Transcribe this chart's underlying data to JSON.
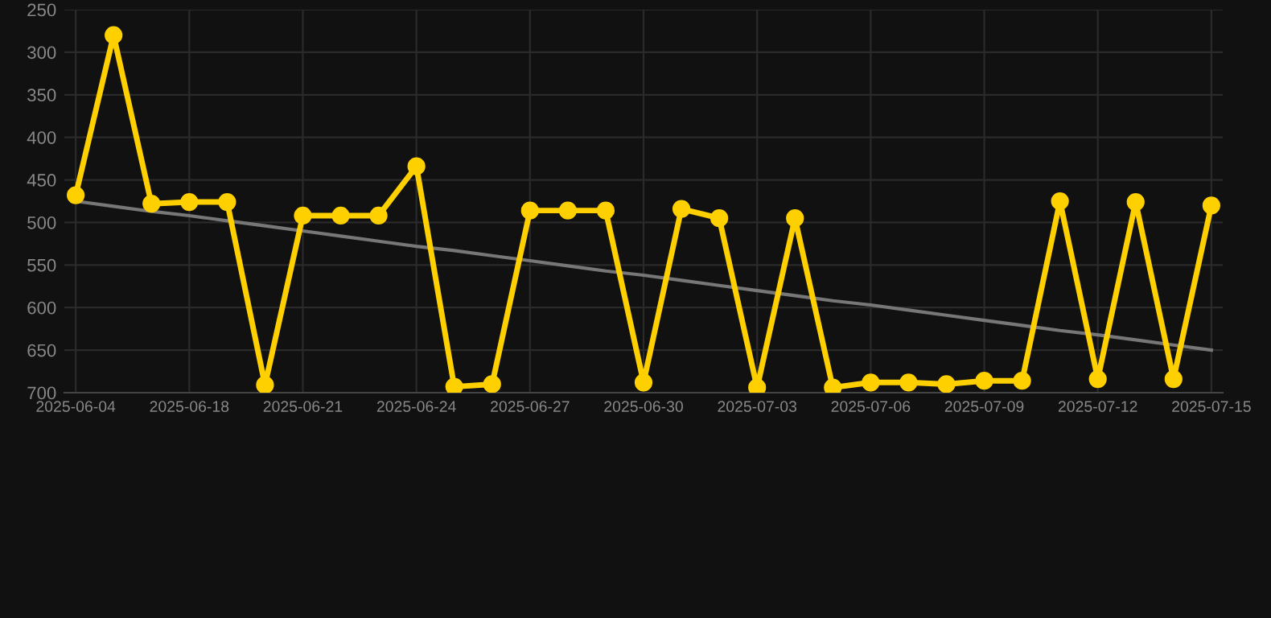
{
  "chart_data": {
    "type": "line",
    "categories": [
      "2025-06-04",
      null,
      null,
      "2025-06-18",
      null,
      null,
      "2025-06-21",
      null,
      null,
      "2025-06-24",
      null,
      null,
      "2025-06-27",
      null,
      null,
      "2025-06-30",
      null,
      null,
      "2025-07-03",
      null,
      null,
      "2025-07-06",
      null,
      null,
      "2025-07-09",
      null,
      null,
      "2025-07-12",
      null,
      null,
      "2025-07-15"
    ],
    "series": [
      {
        "color": "#ffd000",
        "marker": "circle",
        "values": [
          468,
          280,
          478,
          476,
          476,
          691,
          492,
          492,
          492,
          434,
          693,
          690,
          486,
          486,
          486,
          688,
          484,
          495,
          694,
          495,
          694,
          688,
          688,
          690,
          686,
          686,
          475,
          684,
          476,
          684,
          480
        ]
      },
      {
        "type": "line",
        "color": "#777777",
        "marker": "none",
        "values": [
          475,
          481,
          487,
          492,
          498,
          504,
          510,
          516,
          522,
          528,
          533,
          539,
          545,
          551,
          557,
          562,
          568,
          574,
          580,
          586,
          592,
          597,
          603,
          609,
          615,
          621,
          627,
          632,
          638,
          644,
          650
        ]
      }
    ],
    "ylim": [
      700,
      250
    ],
    "yticks": [
      250,
      300,
      350,
      400,
      450,
      500,
      550,
      600,
      650,
      700
    ],
    "grid": true
  }
}
